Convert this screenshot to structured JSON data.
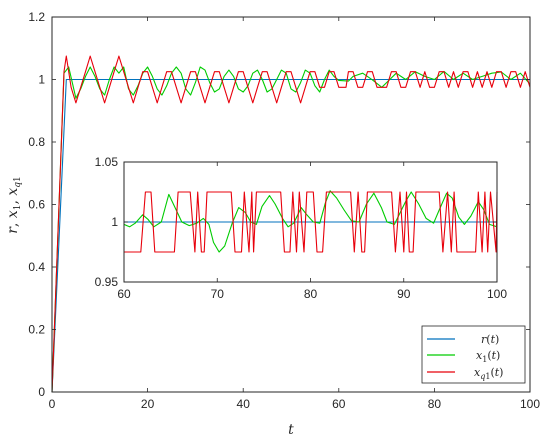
{
  "chart_data": [
    {
      "type": "line",
      "panel": "main",
      "xlabel": "t",
      "ylabel": "r, x1, xq1",
      "xlim": [
        0,
        100
      ],
      "ylim": [
        0,
        1.2
      ],
      "xticks": [
        "0",
        "20",
        "40",
        "60",
        "80",
        "100"
      ],
      "yticks": [
        "0",
        "0.2",
        "0.4",
        "0.6",
        "0.8",
        "1",
        "1.2"
      ],
      "legend_position": "bottom-right",
      "legend": [
        "r(t)",
        "x1(t)",
        "xq1(t)"
      ],
      "series": [
        {
          "name": "r(t)",
          "color": "#0072BD",
          "x": [
            0,
            1.5,
            3,
            100
          ],
          "y": [
            0,
            0.5,
            1,
            1
          ]
        },
        {
          "name": "x1(t)",
          "color": "#00CC00",
          "x": [
            0,
            2.5,
            3.5,
            5,
            6,
            7,
            8,
            9,
            10,
            11,
            12,
            13,
            14,
            15,
            16,
            17,
            18,
            19,
            20,
            21,
            22,
            23,
            24,
            25,
            26,
            27,
            28,
            29,
            30,
            31,
            32,
            33,
            34,
            35,
            36,
            37,
            38,
            39,
            40,
            41,
            42,
            43,
            44,
            45,
            46,
            47,
            48,
            49,
            50,
            51,
            52,
            53,
            54,
            55,
            56,
            57,
            58,
            59,
            60,
            62,
            63,
            65,
            67,
            69,
            70,
            72,
            74,
            76,
            78,
            80,
            82,
            84,
            86,
            88,
            90,
            92,
            94,
            96,
            98,
            100
          ],
          "y": [
            0,
            1.02,
            1.04,
            0.94,
            0.97,
            1.01,
            1.04,
            1.01,
            0.97,
            0.95,
            1.0,
            1.04,
            1.02,
            1.04,
            0.97,
            0.95,
            0.98,
            1.02,
            1.04,
            1.01,
            0.97,
            0.95,
            0.98,
            1.02,
            1.04,
            1.02,
            0.97,
            0.95,
            0.99,
            1.04,
            1.03,
            0.99,
            0.96,
            0.97,
            1.01,
            1.03,
            1.01,
            0.97,
            0.96,
            0.98,
            1.02,
            1.03,
            1.0,
            0.96,
            0.97,
            1.0,
            1.03,
            1.02,
            0.97,
            0.96,
            0.99,
            1.03,
            1.02,
            0.98,
            0.96,
            1.0,
            1.03,
            1.01,
            0.997,
            0.995,
            1.01,
            1.02,
            0.999,
            0.975,
            0.99,
            1.02,
            1.0,
            1.025,
            1.01,
            1.0,
            1.026,
            1.0,
            1.02,
            1.0,
            1.01,
            1.02,
            1.024,
            1.0,
            1.02,
            0.985
          ]
        },
        {
          "name": "xq1(t)",
          "color": "#E8000B",
          "x": [
            0,
            2.5,
            3,
            3.5,
            4,
            5,
            6,
            7,
            8,
            9,
            10,
            11,
            12,
            13,
            14,
            15,
            16,
            17,
            18,
            19,
            20,
            21,
            22,
            23,
            24,
            25,
            26,
            27,
            28,
            29,
            30,
            31,
            32,
            33,
            34,
            35,
            36,
            37,
            38,
            39,
            40,
            41,
            42,
            43,
            44,
            45,
            46,
            47,
            48,
            49,
            50,
            51,
            52,
            53,
            54,
            55,
            56,
            57,
            58,
            59,
            60,
            61.5,
            62,
            63,
            64,
            65,
            66,
            67,
            68,
            69,
            70,
            71,
            72,
            73,
            74,
            75,
            76,
            77,
            78,
            79,
            80,
            81,
            82,
            83,
            84,
            85,
            86,
            87,
            88,
            89,
            90,
            91,
            92,
            93,
            94,
            95,
            96,
            97,
            98,
            99,
            100
          ],
          "y": [
            0,
            1.025,
            1.075,
            1.025,
            0.975,
            0.925,
            0.975,
            1.025,
            1.075,
            1.025,
            0.975,
            0.925,
            0.975,
            1.025,
            1.075,
            1.025,
            0.975,
            0.925,
            0.975,
            1.025,
            1.025,
            0.975,
            0.925,
            0.975,
            1.025,
            1.025,
            0.975,
            0.925,
            0.975,
            1.025,
            1.025,
            0.975,
            0.925,
            0.975,
            1.025,
            1.025,
            0.975,
            0.925,
            0.975,
            1.025,
            1.025,
            0.975,
            0.925,
            0.975,
            1.025,
            1.025,
            0.975,
            0.925,
            0.975,
            1.025,
            1.025,
            0.975,
            0.925,
            0.975,
            1.025,
            1.025,
            0.975,
            0.975,
            1.025,
            1.025,
            0.975,
            0.975,
            1.025,
            1.025,
            0.975,
            0.975,
            1.025,
            1.025,
            0.975,
            0.975,
            0.975,
            1.025,
            1.025,
            0.975,
            0.975,
            1.025,
            1.025,
            0.975,
            1.025,
            0.975,
            0.975,
            1.025,
            1.025,
            0.975,
            1.025,
            0.975,
            1.025,
            1.025,
            0.975,
            1.025,
            0.975,
            1.025,
            0.975,
            1.025,
            1.025,
            0.975,
            1.025,
            1.025,
            0.975,
            1.025,
            0.975
          ]
        }
      ]
    },
    {
      "type": "line",
      "panel": "inset",
      "xlim": [
        60,
        100
      ],
      "ylim": [
        0.95,
        1.05
      ],
      "xticks": [
        "60",
        "70",
        "80",
        "90",
        "100"
      ],
      "yticks": [
        "0.95",
        "1",
        "1.05"
      ],
      "series": [
        {
          "name": "r(t)",
          "color": "#0072BD",
          "x": [
            60,
            100
          ],
          "y": [
            1,
            1
          ]
        },
        {
          "name": "x1(t)",
          "color": "#00CC00",
          "x": [
            60,
            60.6,
            61.2,
            62,
            62.6,
            63.2,
            64,
            64.8,
            65.6,
            66.2,
            67,
            67.8,
            68.5,
            69.1,
            69.6,
            70.2,
            70.8,
            71.6,
            72.3,
            73,
            73.6,
            74.2,
            74.8,
            75.6,
            76.2,
            77,
            77.6,
            78.2,
            79,
            79.6,
            80.3,
            81,
            81.6,
            82.1,
            82.8,
            83.6,
            84.4,
            85.2,
            86,
            86.8,
            87.6,
            88.2,
            89,
            89.5,
            90.2,
            90.8,
            91.6,
            92.4,
            93.2,
            93.8,
            94.6,
            95.2,
            95.9,
            96.5,
            97.2,
            98,
            98.6,
            99.2,
            100
          ],
          "y": [
            0.998,
            0.996,
            0.999,
            1.006,
            1.002,
            0.996,
            1.0,
            1.023,
            1.01,
            1.0,
            0.997,
            0.999,
            1.003,
            0.998,
            0.983,
            0.975,
            0.98,
            0.999,
            1.012,
            1.008,
            1.0,
            0.998,
            1.013,
            1.022,
            1.015,
            1.003,
            0.996,
            0.999,
            1.012,
            1.006,
            1.0,
            0.999,
            1.016,
            1.026,
            1.02,
            1.01,
            1.001,
            1.0,
            1.015,
            1.024,
            1.012,
            1.0,
            0.998,
            1.006,
            1.017,
            1.025,
            1.015,
            1.003,
            0.999,
            1.01,
            1.024,
            1.02,
            1.004,
            0.998,
            1.005,
            1.017,
            1.01,
            0.998,
            0.996
          ]
        },
        {
          "name": "xq1(t)",
          "color": "#E8000B",
          "x": [
            60,
            61.8,
            62.3,
            62.9,
            63.3,
            65.4,
            65.8,
            67.1,
            67.6,
            67.9,
            68.3,
            68.6,
            68.9,
            71.5,
            71.9,
            72.6,
            72.9,
            73.4,
            73.7,
            73.9,
            74.2,
            76.8,
            77.2,
            77.8,
            78.1,
            78.5,
            78.8,
            79.3,
            79.6,
            80.3,
            80.7,
            81.3,
            81.7,
            84.3,
            84.7,
            85.1,
            85.5,
            85.8,
            86.1,
            88.7,
            89.1,
            89.6,
            90.0,
            90.3,
            90.6,
            91.0,
            91.3,
            93.8,
            94.2,
            94.7,
            95.1,
            95.4,
            95.7,
            97.7,
            98.0,
            98.4,
            98.7,
            99.0,
            99.3,
            99.9,
            100
          ],
          "y": [
            0.975,
            0.975,
            1.025,
            1.025,
            0.975,
            0.975,
            1.025,
            1.025,
            0.975,
            1.025,
            0.975,
            0.975,
            1.025,
            1.025,
            0.975,
            0.975,
            1.025,
            0.975,
            1.025,
            0.975,
            1.025,
            1.025,
            0.975,
            0.975,
            1.025,
            0.975,
            1.025,
            0.975,
            1.025,
            1.025,
            0.975,
            0.975,
            1.025,
            1.025,
            0.975,
            1.025,
            0.975,
            0.975,
            1.025,
            1.025,
            0.975,
            1.025,
            0.975,
            1.025,
            0.975,
            0.975,
            1.025,
            1.025,
            0.975,
            1.025,
            0.975,
            1.025,
            0.975,
            0.975,
            1.025,
            0.975,
            1.025,
            0.975,
            1.025,
            0.975,
            1.025
          ]
        }
      ]
    }
  ]
}
